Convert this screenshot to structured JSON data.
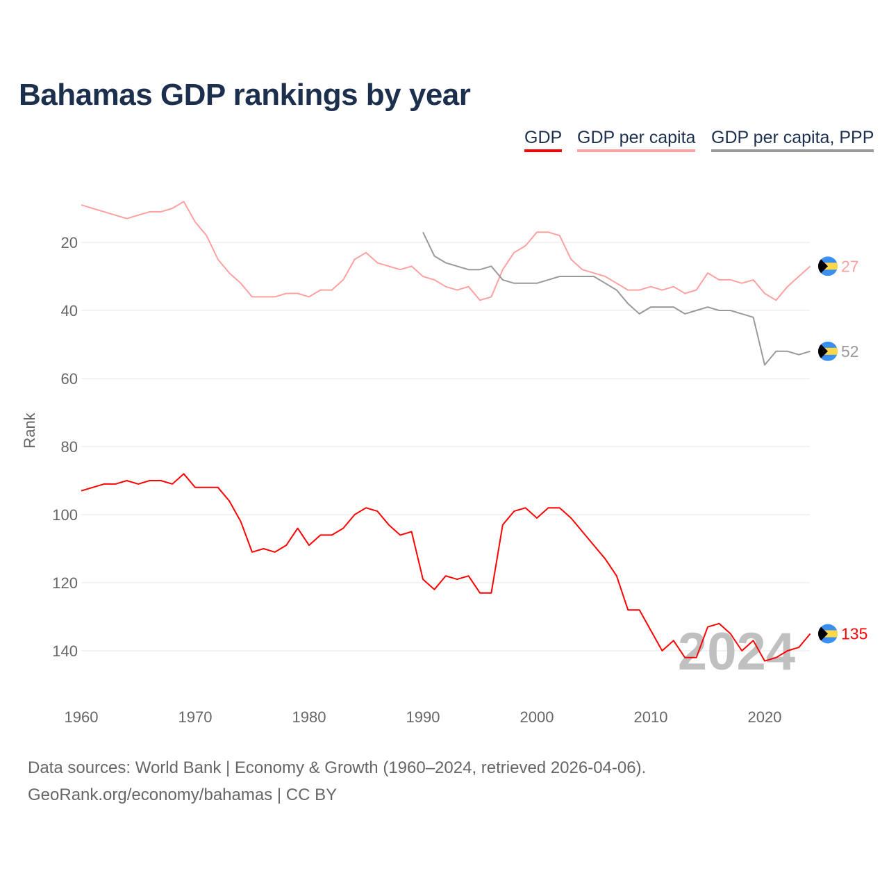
{
  "title": "Bahamas GDP rankings by year",
  "legend": [
    "GDP",
    "GDP per capita",
    "GDP per capita, PPP"
  ],
  "footer": {
    "line1": "Data sources: World Bank | Economy & Growth (1960–2024, retrieved 2026-04-06).",
    "line2": "GeoRank.org/economy/bahamas | CC BY"
  },
  "watermark_year": "2024",
  "chart_data": {
    "type": "line",
    "title": "Bahamas GDP rankings by year",
    "xlabel": "",
    "ylabel": "Rank",
    "xlim": [
      1960,
      2024
    ],
    "ylim": [
      0,
      150
    ],
    "y_inverted": true,
    "grid": true,
    "legend_position": "top-right",
    "x_ticks": [
      1960,
      1970,
      1980,
      1990,
      2000,
      2010,
      2020
    ],
    "y_ticks": [
      20,
      40,
      60,
      80,
      100,
      120,
      140
    ],
    "series": [
      {
        "name": "GDP",
        "color": "#ff0000",
        "start_year": 1960,
        "end_label": "135",
        "values": [
          93,
          92,
          91,
          91,
          90,
          91,
          90,
          90,
          91,
          88,
          92,
          92,
          92,
          96,
          102,
          111,
          110,
          111,
          109,
          104,
          109,
          106,
          106,
          104,
          100,
          98,
          99,
          103,
          106,
          105,
          119,
          122,
          118,
          119,
          118,
          123,
          123,
          103,
          99,
          98,
          101,
          98,
          98,
          101,
          105,
          109,
          113,
          118,
          128,
          128,
          134,
          140,
          137,
          142,
          142,
          133,
          132,
          135,
          140,
          137,
          143,
          142,
          140,
          139,
          135
        ]
      },
      {
        "name": "GDP per capita",
        "color": "#ffa0a0",
        "start_year": 1960,
        "end_label": "27",
        "values": [
          9,
          10,
          11,
          12,
          13,
          12,
          11,
          11,
          10,
          8,
          14,
          18,
          25,
          29,
          32,
          36,
          36,
          36,
          35,
          35,
          36,
          34,
          34,
          31,
          25,
          23,
          26,
          27,
          28,
          27,
          30,
          31,
          33,
          34,
          33,
          37,
          36,
          28,
          23,
          21,
          17,
          17,
          18,
          25,
          28,
          29,
          30,
          32,
          34,
          34,
          33,
          34,
          33,
          35,
          34,
          29,
          31,
          31,
          32,
          31,
          35,
          37,
          33,
          30,
          27
        ]
      },
      {
        "name": "GDP per capita, PPP",
        "color": "#999999",
        "start_year": 1990,
        "end_label": "52",
        "values": [
          17,
          24,
          26,
          27,
          28,
          28,
          27,
          31,
          32,
          32,
          32,
          31,
          30,
          30,
          30,
          30,
          32,
          34,
          38,
          41,
          39,
          39,
          39,
          41,
          40,
          39,
          40,
          40,
          41,
          42,
          56,
          52,
          52,
          53,
          52
        ]
      }
    ]
  }
}
